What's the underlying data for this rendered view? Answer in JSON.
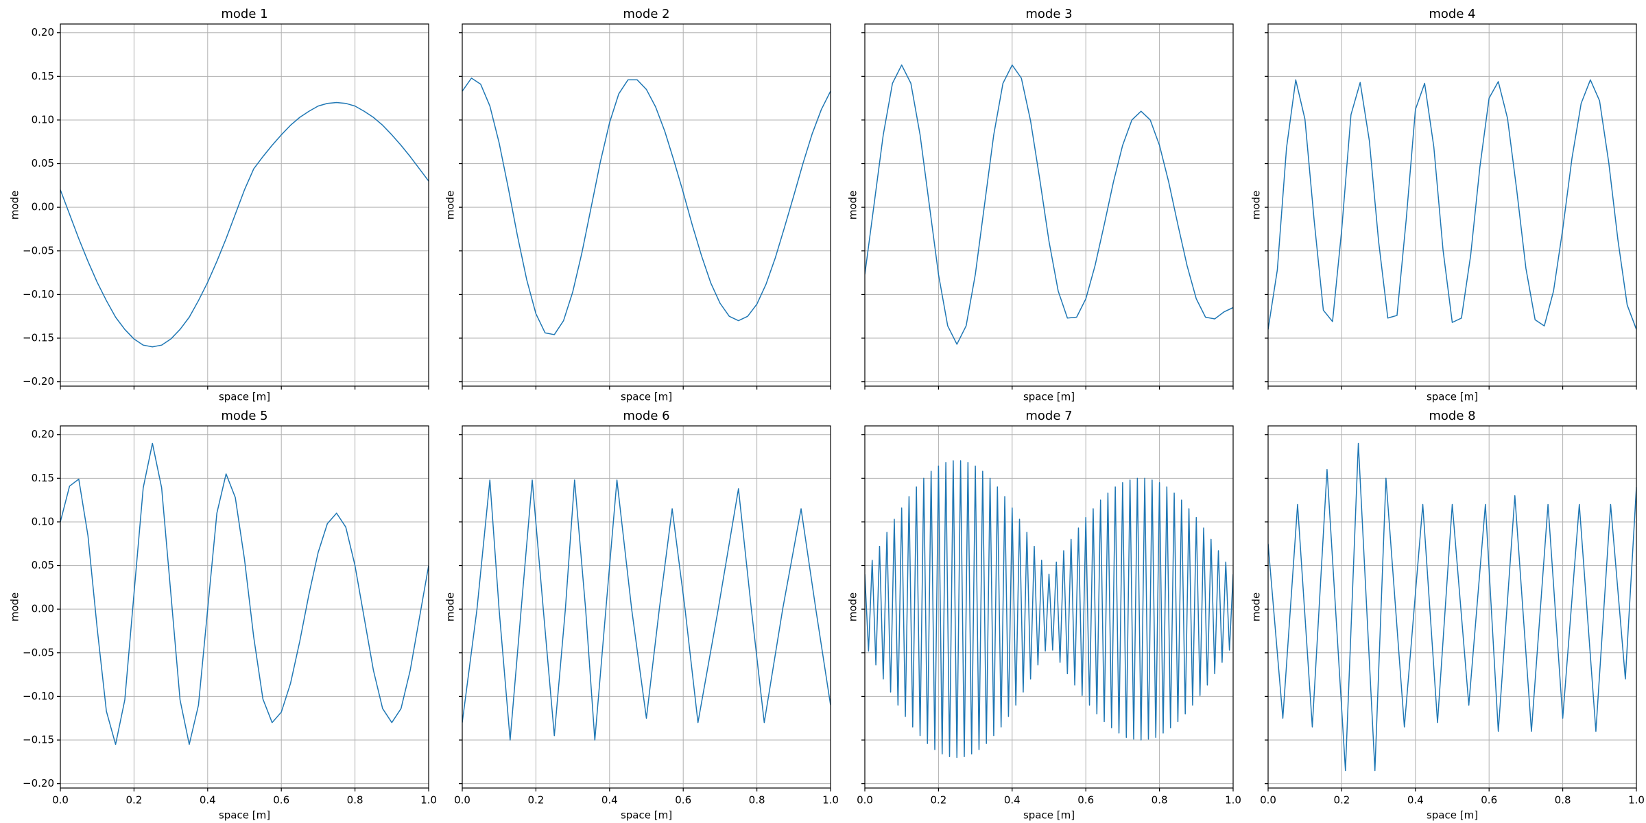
{
  "chart_data": [
    {
      "type": "line",
      "title": "mode 1",
      "x_label": "space [m]",
      "y_label": "mode",
      "color": "#1f77b4",
      "grid": true,
      "show_xtick_labels": false,
      "show_ytick_labels": true,
      "xlim": [
        0,
        1
      ],
      "ylim": [
        -0.205,
        0.21
      ],
      "xticks": [
        0,
        0.2,
        0.4,
        0.6,
        0.8,
        1
      ],
      "yticks": [
        {
          "value": -0.2,
          "label": "−0.20"
        },
        {
          "value": -0.15,
          "label": "−0.15"
        },
        {
          "value": -0.1,
          "label": "−0.10"
        },
        {
          "value": -0.05,
          "label": "−0.05"
        },
        {
          "value": 0,
          "label": "0.00"
        },
        {
          "value": 0.05,
          "label": "0.05"
        },
        {
          "value": 0.1,
          "label": "0.10"
        },
        {
          "value": 0.15,
          "label": "0.15"
        },
        {
          "value": 0.2,
          "label": "0.20"
        }
      ],
      "x": [
        0,
        0.025,
        0.05,
        0.075,
        0.1,
        0.125,
        0.15,
        0.175,
        0.2,
        0.225,
        0.25,
        0.275,
        0.3,
        0.325,
        0.35,
        0.375,
        0.4,
        0.425,
        0.45,
        0.475,
        0.5,
        0.525,
        0.55,
        0.575,
        0.6,
        0.625,
        0.65,
        0.675,
        0.7,
        0.725,
        0.75,
        0.775,
        0.8,
        0.825,
        0.85,
        0.875,
        0.9,
        0.925,
        0.95,
        0.975,
        1
      ],
      "values": [
        0.02,
        -0.008,
        -0.036,
        -0.062,
        -0.086,
        -0.107,
        -0.126,
        -0.14,
        -0.151,
        -0.158,
        -0.16,
        -0.158,
        -0.151,
        -0.14,
        -0.126,
        -0.107,
        -0.086,
        -0.062,
        -0.036,
        -0.008,
        0.02,
        0.044,
        0.058,
        0.071,
        0.083,
        0.094,
        0.103,
        0.11,
        0.116,
        0.119,
        0.12,
        0.119,
        0.116,
        0.11,
        0.103,
        0.094,
        0.083,
        0.071,
        0.058,
        0.044,
        0.03
      ]
    },
    {
      "type": "line",
      "title": "mode 2",
      "x_label": "space [m]",
      "y_label": "mode",
      "color": "#1f77b4",
      "grid": true,
      "show_xtick_labels": false,
      "show_ytick_labels": false,
      "xlim": [
        0,
        1
      ],
      "ylim": [
        -0.205,
        0.21
      ],
      "xticks": [
        0,
        0.2,
        0.4,
        0.6,
        0.8,
        1
      ],
      "yticks": [
        -0.2,
        -0.15,
        -0.1,
        -0.05,
        0,
        0.05,
        0.1,
        0.15,
        0.2
      ],
      "x": [
        0,
        0.025,
        0.05,
        0.075,
        0.1,
        0.125,
        0.15,
        0.175,
        0.2,
        0.225,
        0.25,
        0.275,
        0.3,
        0.325,
        0.35,
        0.375,
        0.4,
        0.425,
        0.45,
        0.475,
        0.5,
        0.525,
        0.55,
        0.575,
        0.6,
        0.625,
        0.65,
        0.675,
        0.7,
        0.725,
        0.75,
        0.775,
        0.8,
        0.825,
        0.85,
        0.875,
        0.9,
        0.925,
        0.95,
        0.975,
        1
      ],
      "values": [
        0.133,
        0.148,
        0.141,
        0.116,
        0.074,
        0.022,
        -0.033,
        -0.083,
        -0.122,
        -0.144,
        -0.146,
        -0.13,
        -0.097,
        -0.052,
        0,
        0.052,
        0.097,
        0.13,
        0.146,
        0.146,
        0.135,
        0.115,
        0.087,
        0.053,
        0.017,
        -0.021,
        -0.056,
        -0.087,
        -0.11,
        -0.125,
        -0.13,
        -0.125,
        -0.111,
        -0.088,
        -0.058,
        -0.023,
        0.013,
        0.05,
        0.084,
        0.112,
        0.133
      ]
    },
    {
      "type": "line",
      "title": "mode 3",
      "x_label": "space [m]",
      "y_label": "mode",
      "color": "#1f77b4",
      "grid": true,
      "show_xtick_labels": false,
      "show_ytick_labels": false,
      "xlim": [
        0,
        1
      ],
      "ylim": [
        -0.205,
        0.21
      ],
      "xticks": [
        0,
        0.2,
        0.4,
        0.6,
        0.8,
        1
      ],
      "yticks": [
        -0.2,
        -0.15,
        -0.1,
        -0.05,
        0,
        0.05,
        0.1,
        0.15,
        0.2
      ],
      "x": [
        0,
        0.025,
        0.05,
        0.075,
        0.1,
        0.125,
        0.15,
        0.175,
        0.2,
        0.225,
        0.25,
        0.275,
        0.3,
        0.325,
        0.35,
        0.375,
        0.4,
        0.425,
        0.45,
        0.475,
        0.5,
        0.525,
        0.55,
        0.575,
        0.6,
        0.625,
        0.65,
        0.675,
        0.7,
        0.725,
        0.75,
        0.775,
        0.8,
        0.825,
        0.85,
        0.875,
        0.9,
        0.925,
        0.95,
        0.975,
        1
      ],
      "values": [
        -0.077,
        0.003,
        0.083,
        0.142,
        0.163,
        0.142,
        0.083,
        0.003,
        -0.077,
        -0.136,
        -0.157,
        -0.136,
        -0.077,
        0.003,
        0.083,
        0.142,
        0.163,
        0.148,
        0.099,
        0.032,
        -0.039,
        -0.096,
        -0.127,
        -0.126,
        -0.105,
        -0.067,
        -0.02,
        0.029,
        0.071,
        0.1,
        0.11,
        0.1,
        0.071,
        0.029,
        -0.02,
        -0.067,
        -0.105,
        -0.126,
        -0.128,
        -0.12,
        -0.115
      ]
    },
    {
      "type": "line",
      "title": "mode 4",
      "x_label": "space [m]",
      "y_label": "mode",
      "color": "#1f77b4",
      "grid": true,
      "show_xtick_labels": false,
      "show_ytick_labels": false,
      "xlim": [
        0,
        1
      ],
      "ylim": [
        -0.205,
        0.21
      ],
      "xticks": [
        0,
        0.2,
        0.4,
        0.6,
        0.8,
        1
      ],
      "yticks": [
        -0.2,
        -0.15,
        -0.1,
        -0.05,
        0,
        0.05,
        0.1,
        0.15,
        0.2
      ],
      "x": [
        0,
        0.025,
        0.05,
        0.075,
        0.1,
        0.125,
        0.15,
        0.175,
        0.2,
        0.225,
        0.25,
        0.275,
        0.3,
        0.325,
        0.35,
        0.375,
        0.4,
        0.425,
        0.45,
        0.475,
        0.5,
        0.525,
        0.55,
        0.575,
        0.6,
        0.625,
        0.65,
        0.675,
        0.7,
        0.725,
        0.75,
        0.775,
        0.8,
        0.825,
        0.85,
        0.875,
        0.9,
        0.925,
        0.95,
        0.975,
        1
      ],
      "values": [
        -0.14,
        -0.072,
        0.068,
        0.146,
        0.101,
        -0.015,
        -0.118,
        -0.131,
        -0.025,
        0.106,
        0.143,
        0.076,
        -0.039,
        -0.127,
        -0.124,
        -0.014,
        0.112,
        0.142,
        0.069,
        -0.049,
        -0.132,
        -0.127,
        -0.055,
        0.046,
        0.125,
        0.144,
        0.102,
        0.02,
        -0.07,
        -0.129,
        -0.136,
        -0.096,
        -0.025,
        0.056,
        0.119,
        0.146,
        0.122,
        0.051,
        -0.038,
        -0.112,
        -0.14
      ]
    },
    {
      "type": "line",
      "title": "mode 5",
      "x_label": "space [m]",
      "y_label": "mode",
      "color": "#1f77b4",
      "grid": true,
      "show_xtick_labels": true,
      "show_ytick_labels": true,
      "xlim": [
        0,
        1
      ],
      "ylim": [
        -0.205,
        0.21
      ],
      "xticks": [
        {
          "value": 0,
          "label": "0.0"
        },
        0.2,
        0.4,
        0.6,
        0.8,
        {
          "value": 1,
          "label": "1.0"
        }
      ],
      "yticks": [
        {
          "value": -0.2,
          "label": "−0.20"
        },
        {
          "value": -0.15,
          "label": "−0.15"
        },
        {
          "value": -0.1,
          "label": "−0.10"
        },
        {
          "value": -0.05,
          "label": "−0.05"
        },
        {
          "value": 0,
          "label": "0.00"
        },
        {
          "value": 0.05,
          "label": "0.05"
        },
        {
          "value": 0.1,
          "label": "0.10"
        },
        {
          "value": 0.15,
          "label": "0.15"
        },
        {
          "value": 0.2,
          "label": "0.20"
        }
      ],
      "x": [
        0,
        0.025,
        0.05,
        0.075,
        0.1,
        0.125,
        0.15,
        0.175,
        0.2,
        0.225,
        0.25,
        0.275,
        0.3,
        0.325,
        0.35,
        0.375,
        0.4,
        0.425,
        0.45,
        0.475,
        0.5,
        0.525,
        0.55,
        0.575,
        0.6,
        0.625,
        0.65,
        0.675,
        0.7,
        0.725,
        0.75,
        0.775,
        0.8,
        0.825,
        0.85,
        0.875,
        0.9,
        0.925,
        0.95,
        0.975,
        1
      ],
      "values": [
        0.1,
        0.141,
        0.149,
        0.084,
        -0.022,
        -0.117,
        -0.155,
        -0.104,
        0.018,
        0.139,
        0.19,
        0.139,
        0.018,
        -0.104,
        -0.155,
        -0.11,
        0,
        0.11,
        0.155,
        0.128,
        0.057,
        -0.032,
        -0.103,
        -0.13,
        -0.118,
        -0.085,
        -0.037,
        0.017,
        0.065,
        0.098,
        0.11,
        0.094,
        0.05,
        -0.01,
        -0.07,
        -0.114,
        -0.13,
        -0.114,
        -0.07,
        -0.01,
        0.05
      ]
    },
    {
      "type": "line",
      "title": "mode 6",
      "x_label": "space [m]",
      "y_label": "mode",
      "color": "#1f77b4",
      "grid": true,
      "show_xtick_labels": true,
      "show_ytick_labels": false,
      "xlim": [
        0,
        1
      ],
      "ylim": [
        -0.205,
        0.21
      ],
      "xticks": [
        {
          "value": 0,
          "label": "0.0"
        },
        0.2,
        0.4,
        0.6,
        0.8,
        {
          "value": 1,
          "label": "1.0"
        }
      ],
      "yticks": [
        -0.2,
        -0.15,
        -0.1,
        -0.05,
        0,
        0.05,
        0.1,
        0.15,
        0.2
      ],
      "x": [
        0,
        0.04,
        0.075,
        0.1,
        0.13,
        0.16,
        0.19,
        0.22,
        0.25,
        0.28,
        0.305,
        0.335,
        0.36,
        0.39,
        0.42,
        0.46,
        0.5,
        0.535,
        0.57,
        0.605,
        0.64,
        0.695,
        0.75,
        0.785,
        0.82,
        0.87,
        0.92,
        0.96,
        1
      ],
      "values": [
        -0.13,
        0,
        0.148,
        0,
        -0.15,
        0,
        0.148,
        0,
        -0.145,
        0,
        0.148,
        0,
        -0.15,
        0,
        0.148,
        0,
        -0.125,
        0,
        0.115,
        0,
        -0.13,
        0,
        0.138,
        0,
        -0.13,
        0,
        0.115,
        0,
        -0.11
      ]
    },
    {
      "type": "line",
      "title": "mode 7",
      "x_label": "space [m]",
      "y_label": "mode",
      "color": "#1f77b4",
      "grid": true,
      "show_xtick_labels": true,
      "show_ytick_labels": false,
      "xlim": [
        0,
        1
      ],
      "ylim": [
        -0.205,
        0.21
      ],
      "xticks": [
        {
          "value": 0,
          "label": "0.0"
        },
        0.2,
        0.4,
        0.6,
        0.8,
        {
          "value": 1,
          "label": "1.0"
        }
      ],
      "yticks": [
        -0.2,
        -0.15,
        -0.1,
        -0.05,
        0,
        0.05,
        0.1,
        0.15,
        0.2
      ],
      "x": [
        0,
        0.01,
        0.02,
        0.03,
        0.04,
        0.05,
        0.06,
        0.07,
        0.08,
        0.09,
        0.1,
        0.11,
        0.12,
        0.13,
        0.14,
        0.15,
        0.16,
        0.17,
        0.18,
        0.19,
        0.2,
        0.21,
        0.22,
        0.23,
        0.24,
        0.25,
        0.26,
        0.27,
        0.28,
        0.29,
        0.3,
        0.31,
        0.32,
        0.33,
        0.34,
        0.35,
        0.36,
        0.37,
        0.38,
        0.39,
        0.4,
        0.41,
        0.42,
        0.43,
        0.44,
        0.45,
        0.46,
        0.47,
        0.48,
        0.49,
        0.5,
        0.51,
        0.52,
        0.53,
        0.54,
        0.55,
        0.56,
        0.57,
        0.58,
        0.59,
        0.6,
        0.61,
        0.62,
        0.63,
        0.64,
        0.65,
        0.66,
        0.67,
        0.68,
        0.69,
        0.7,
        0.71,
        0.72,
        0.73,
        0.74,
        0.75,
        0.76,
        0.77,
        0.78,
        0.79,
        0.8,
        0.81,
        0.82,
        0.83,
        0.84,
        0.85,
        0.86,
        0.87,
        0.88,
        0.89,
        0.9,
        0.91,
        0.92,
        0.93,
        0.94,
        0.95,
        0.96,
        0.97,
        0.98,
        0.99,
        1
      ],
      "values": [
        0.04,
        -0.048,
        0.056,
        -0.064,
        0.072,
        -0.08,
        0.088,
        -0.095,
        0.103,
        -0.11,
        0.116,
        -0.123,
        0.129,
        -0.135,
        0.14,
        -0.145,
        0.15,
        -0.154,
        0.158,
        -0.161,
        0.164,
        -0.166,
        0.168,
        -0.169,
        0.17,
        -0.17,
        0.17,
        -0.169,
        0.168,
        -0.166,
        0.164,
        -0.161,
        0.158,
        -0.154,
        0.15,
        -0.145,
        0.14,
        -0.135,
        0.129,
        -0.123,
        0.116,
        -0.11,
        0.103,
        -0.095,
        0.088,
        -0.08,
        0.072,
        -0.064,
        0.056,
        -0.048,
        0.04,
        -0.047,
        0.054,
        -0.061,
        0.067,
        -0.074,
        0.08,
        -0.087,
        0.093,
        -0.099,
        0.105,
        -0.11,
        0.115,
        -0.12,
        0.125,
        -0.129,
        0.133,
        -0.136,
        0.14,
        -0.142,
        0.145,
        -0.147,
        0.148,
        -0.149,
        0.15,
        -0.15,
        0.15,
        -0.149,
        0.148,
        -0.147,
        0.145,
        -0.142,
        0.14,
        -0.136,
        0.133,
        -0.129,
        0.125,
        -0.12,
        0.115,
        -0.11,
        0.105,
        -0.099,
        0.093,
        -0.087,
        0.08,
        -0.074,
        0.067,
        -0.061,
        0.054,
        -0.047,
        0.04
      ]
    },
    {
      "type": "line",
      "title": "mode 8",
      "x_label": "space [m]",
      "y_label": "mode",
      "color": "#1f77b4",
      "grid": true,
      "show_xtick_labels": true,
      "show_ytick_labels": false,
      "xlim": [
        0,
        1
      ],
      "ylim": [
        -0.205,
        0.21
      ],
      "xticks": [
        {
          "value": 0,
          "label": "0.0"
        },
        0.2,
        0.4,
        0.6,
        0.8,
        {
          "value": 1,
          "label": "1.0"
        }
      ],
      "yticks": [
        -0.2,
        -0.15,
        -0.1,
        -0.05,
        0,
        0.05,
        0.1,
        0.15,
        0.2
      ],
      "x": [
        0,
        0.04,
        0.08,
        0.12,
        0.16,
        0.21,
        0.245,
        0.29,
        0.32,
        0.37,
        0.42,
        0.46,
        0.5,
        0.545,
        0.59,
        0.625,
        0.67,
        0.715,
        0.76,
        0.8,
        0.845,
        0.89,
        0.93,
        0.97,
        1
      ],
      "values": [
        0.075,
        -0.125,
        0.12,
        -0.135,
        0.16,
        -0.185,
        0.19,
        -0.185,
        0.15,
        -0.135,
        0.12,
        -0.13,
        0.12,
        -0.11,
        0.12,
        -0.14,
        0.13,
        -0.14,
        0.12,
        -0.125,
        0.12,
        -0.14,
        0.12,
        -0.08,
        0.14
      ]
    }
  ]
}
